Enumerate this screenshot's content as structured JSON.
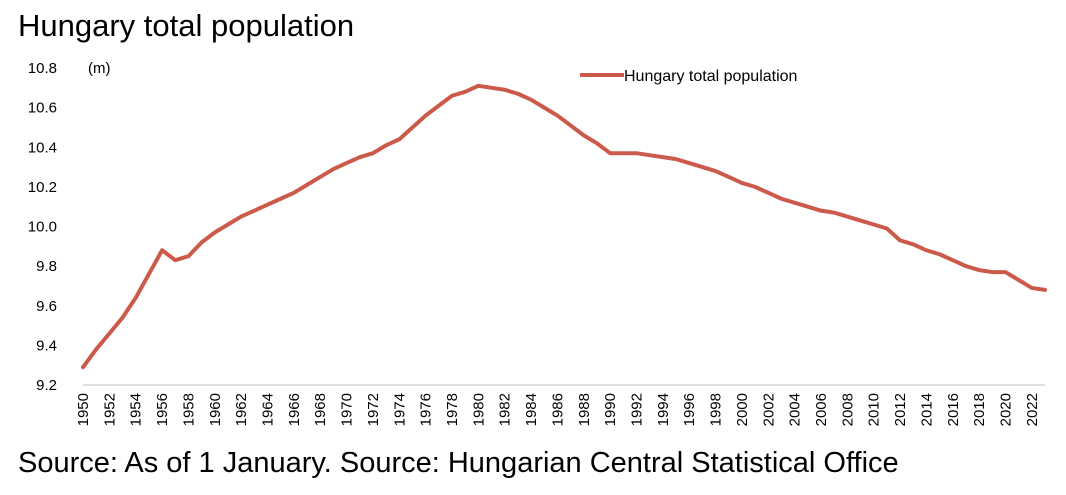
{
  "title": "Hungary total population",
  "source": "Source: As of 1 January. Source: Hungarian Central Statistical Office",
  "colors": {
    "series": "#cc5a4b",
    "axis": "#000000"
  },
  "chart_data": {
    "type": "line",
    "title": "Hungary total population",
    "unit_label": "(m)",
    "xlabel": "",
    "ylabel": "",
    "ylim": [
      9.2,
      10.8
    ],
    "yticks": [
      9.2,
      9.4,
      9.6,
      9.8,
      10.0,
      10.2,
      10.4,
      10.6,
      10.8
    ],
    "ytick_labels": [
      "9.2",
      "9.4",
      "9.6",
      "9.8",
      "10.0",
      "10.2",
      "10.4",
      "10.6",
      "10.8"
    ],
    "xlim": [
      1950,
      2023
    ],
    "xticks": [
      "1950",
      "1952",
      "1954",
      "1956",
      "1958",
      "1960",
      "1962",
      "1964",
      "1966",
      "1968",
      "1970",
      "1972",
      "1974",
      "1976",
      "1978",
      "1980",
      "1982",
      "1984",
      "1986",
      "1988",
      "1990",
      "1992",
      "1994",
      "1996",
      "1998",
      "2000",
      "2002",
      "2004",
      "2006",
      "2008",
      "2010",
      "2012",
      "2014",
      "2016",
      "2018",
      "2020",
      "2022"
    ],
    "grid": false,
    "legend_position": "top-right",
    "x": [
      1950,
      1951,
      1952,
      1953,
      1954,
      1955,
      1956,
      1957,
      1958,
      1959,
      1960,
      1961,
      1962,
      1963,
      1964,
      1965,
      1966,
      1967,
      1968,
      1969,
      1970,
      1971,
      1972,
      1973,
      1974,
      1975,
      1976,
      1977,
      1978,
      1979,
      1980,
      1981,
      1982,
      1983,
      1984,
      1985,
      1986,
      1987,
      1988,
      1989,
      1990,
      1991,
      1992,
      1993,
      1994,
      1995,
      1996,
      1997,
      1998,
      1999,
      2000,
      2001,
      2002,
      2003,
      2004,
      2005,
      2006,
      2007,
      2008,
      2009,
      2010,
      2011,
      2012,
      2013,
      2014,
      2015,
      2016,
      2017,
      2018,
      2019,
      2020,
      2021,
      2022,
      2023
    ],
    "series": [
      {
        "name": "Hungary total population",
        "values": [
          9.29,
          9.38,
          9.46,
          9.54,
          9.64,
          9.76,
          9.88,
          9.83,
          9.85,
          9.92,
          9.97,
          10.01,
          10.05,
          10.08,
          10.11,
          10.14,
          10.17,
          10.21,
          10.25,
          10.29,
          10.32,
          10.35,
          10.37,
          10.41,
          10.44,
          10.5,
          10.56,
          10.61,
          10.66,
          10.68,
          10.71,
          10.7,
          10.69,
          10.67,
          10.64,
          10.6,
          10.56,
          10.51,
          10.46,
          10.42,
          10.37,
          10.37,
          10.37,
          10.36,
          10.35,
          10.34,
          10.32,
          10.3,
          10.28,
          10.25,
          10.22,
          10.2,
          10.17,
          10.14,
          10.12,
          10.1,
          10.08,
          10.07,
          10.05,
          10.03,
          10.01,
          9.99,
          9.93,
          9.91,
          9.88,
          9.86,
          9.83,
          9.8,
          9.78,
          9.77,
          9.77,
          9.73,
          9.69,
          9.68
        ]
      }
    ]
  }
}
